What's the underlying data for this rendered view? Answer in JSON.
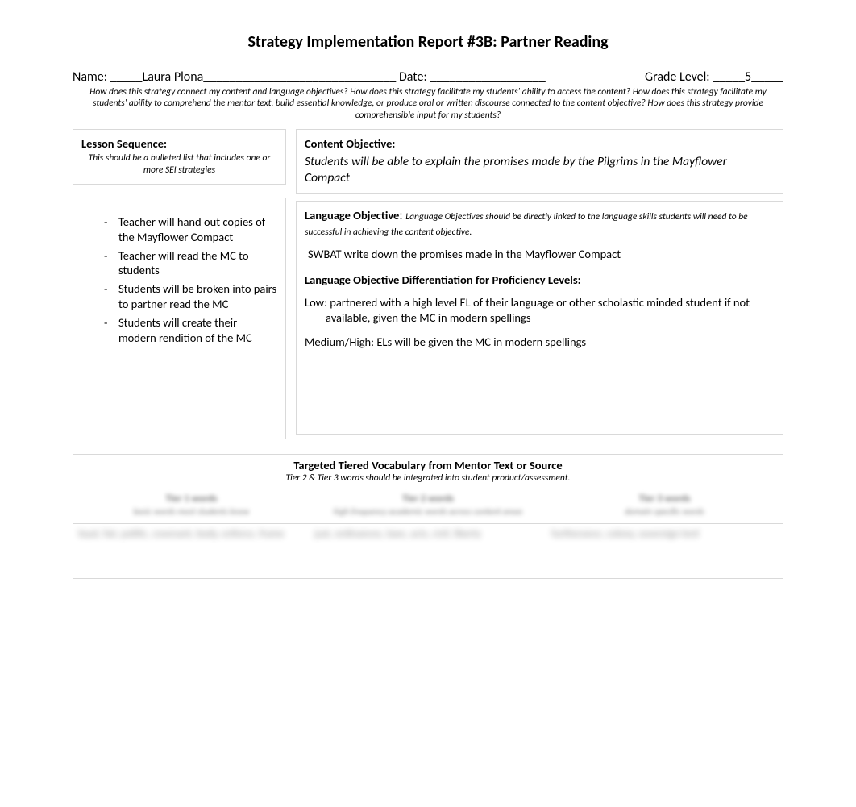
{
  "title": "Strategy Implementation Report #3B: Partner Reading",
  "header": {
    "name_label": "Name: ",
    "name_value": "Laura Plona",
    "name_prefix_underscores": "_____",
    "name_suffix_underscores": "______________________________",
    "date_label": " Date: ",
    "date_underscores": "__________________",
    "grade_label": "Grade Level: ",
    "grade_prefix_underscores": "_____",
    "grade_value": "5",
    "grade_suffix_underscores": "_____"
  },
  "guiding_questions": "How does this strategy connect my content and language objectives? How does this strategy facilitate my students' ability to access the content? How does this strategy facilitate my students' ability to comprehend the mentor text, build essential knowledge, or produce oral or written discourse connected to the content objective? How does this strategy provide comprehensible input for my students?",
  "lesson_sequence": {
    "label": "Lesson Sequence:",
    "sub": "This should be a bulleted list that includes one or more SEI strategies",
    "items": [
      "Teacher will hand out copies of the Mayflower Compact",
      "Teacher will read the MC to students",
      "Students will be broken into pairs to partner read the MC",
      "Students will create their modern rendition of the MC"
    ]
  },
  "content_objective": {
    "label": "Content Objective:",
    "text": "Students will be able to explain the promises made by the Pilgrims in the Mayflower Compact"
  },
  "language_objective": {
    "label": "Language Objective",
    "colon": ": ",
    "hint": "Language Objectives should be directly linked to the language skills students will need to be successful in achieving the content objective.",
    "text": "SWBAT write down the promises made in the Mayflower Compact",
    "diff_label": "Language Objective Differentiation for Proficiency Levels:",
    "low_line1": "Low: partnered with a high level EL of their language or other scholastic minded student if not",
    "low_line2": "available, given the MC in modern spellings",
    "medium": "Medium/High: ELs will be given the MC in modern spellings"
  },
  "vocab": {
    "title": "Targeted Tiered Vocabulary from Mentor Text or Source",
    "sub": "Tier 2 & Tier 3 words should be integrated into student product/assessment.",
    "tiers": [
      {
        "head": "Tier 1 words",
        "desc": "basic words most students know"
      },
      {
        "head": "Tier 2 words",
        "desc": "high frequency academic words across content areas"
      },
      {
        "head": "Tier 3 words",
        "desc": "domain specific words"
      }
    ],
    "cells": [
      "loyal, fair, politic, covenant, body, enforce, frame",
      "just, ordinances, laws, acts, civil, liberty",
      "furtherance, colony, sovereign lord"
    ]
  },
  "colors": {
    "text": "#000000",
    "background": "#ffffff",
    "cell_border": "#d9d9d9"
  },
  "fonts": {
    "family": "Calibri",
    "title_size_pt": 15,
    "body_size_pt": 11,
    "small_italic_pt": 9
  }
}
